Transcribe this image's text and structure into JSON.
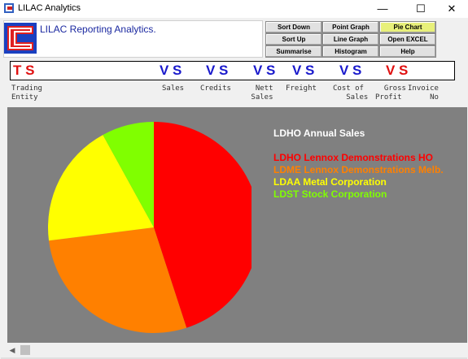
{
  "window": {
    "title": "LILAC Analytics",
    "minimize": "—",
    "maximize": "☐",
    "close": "✕"
  },
  "header": {
    "logo_text": "LILAC Reporting Analytics."
  },
  "buttons": {
    "sort_down": "Sort Down",
    "sort_up": "Sort Up",
    "summarise": "Summarise",
    "point_graph": "Point Graph",
    "line_graph": "Line Graph",
    "histogram": "Histogram",
    "pie_chart": "Pie Chart",
    "open_excel": "Open EXCEL",
    "help": "Help"
  },
  "flags": {
    "trading_entity": "T S",
    "sales": "V S",
    "credits": "V S",
    "nett_sales": "V S",
    "freight": "V S",
    "cost_of_sales": "V S",
    "gross_profit": "V S"
  },
  "columns": {
    "trading_entity": "Trading\nEntity",
    "sales": "Sales",
    "credits": "Credits",
    "nett_sales": "  Nett\n Sales",
    "freight": "Freight",
    "cost_of_sales": "Cost of\n   Sales",
    "gross_profit": "  Gross\nProfit",
    "invoice_no": "Invoice\n     No"
  },
  "chart_data": {
    "type": "pie",
    "title": "LDHO Annual Sales",
    "slices": [
      {
        "label": "LDHO Lennox Demonstrations HO",
        "value": 45,
        "color": "#ff0000"
      },
      {
        "label": "LDME Lennox Demonstrations Melb.",
        "value": 28,
        "color": "#ff8000"
      },
      {
        "label": "LDAA Metal Corporation",
        "value": 19,
        "color": "#ffff00"
      },
      {
        "label": "LDST Stock Corporation",
        "value": 8,
        "color": "#80ff00"
      }
    ],
    "background": "#808080"
  },
  "scrollbar": {
    "left_arrow": "◀"
  }
}
